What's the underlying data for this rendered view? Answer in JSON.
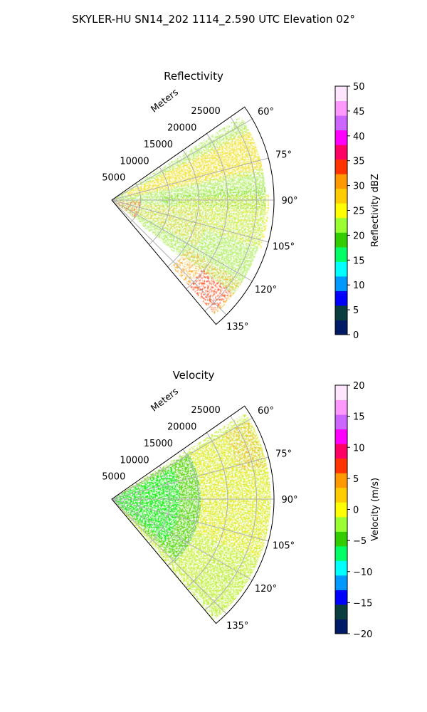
{
  "figure": {
    "suptitle": "SKYLER-HU  SN14_202  1114_2.590 UTC Elevation 02°"
  },
  "chart_data": [
    {
      "type": "heatmap",
      "projection": "polar-sector",
      "title": "Reflectivity",
      "radial_label": "Meters",
      "radial_ticks": [
        5000,
        10000,
        15000,
        20000,
        25000
      ],
      "r_range": [
        0,
        28000
      ],
      "theta_range_deg": [
        55,
        140
      ],
      "theta_ticks_deg": [
        60,
        75,
        90,
        105,
        120,
        135
      ],
      "theta_tick_labels": [
        "60°",
        "75°",
        "90°",
        "105°",
        "120°",
        "135°"
      ],
      "grid": true,
      "colorbar": {
        "label": "Reflectivity dBZ",
        "range": [
          0,
          50
        ],
        "ticks": [
          "0",
          "5",
          "10",
          "15",
          "20",
          "25",
          "30",
          "35",
          "40",
          "45",
          "50"
        ],
        "colors": [
          "#001a66",
          "#0a3d3d",
          "#0000ff",
          "#0099ff",
          "#00ffff",
          "#00ff66",
          "#33cc00",
          "#99ff33",
          "#ffff00",
          "#ffcc00",
          "#ff9900",
          "#ff3300",
          "#ff0066",
          "#ff00ff",
          "#cc66ff",
          "#ff99ff",
          "#ffe6ff"
        ]
      },
      "field_summary": "Dominant 20–30 dBZ (green/yellow) with embedded 35–40 dBZ (red) streaks near 110°–135°"
    },
    {
      "type": "heatmap",
      "projection": "polar-sector",
      "title": "Velocity",
      "radial_label": "Meters",
      "radial_ticks": [
        5000,
        10000,
        15000,
        20000,
        25000
      ],
      "r_range": [
        0,
        28000
      ],
      "theta_range_deg": [
        55,
        140
      ],
      "theta_ticks_deg": [
        60,
        75,
        90,
        105,
        120,
        135
      ],
      "theta_tick_labels": [
        "60°",
        "75°",
        "90°",
        "105°",
        "120°",
        "135°"
      ],
      "grid": true,
      "colorbar": {
        "label": "Velocity (m/s)",
        "range": [
          -20,
          20
        ],
        "ticks": [
          "−20",
          "−15",
          "−10",
          "−5",
          "0",
          "5",
          "10",
          "15",
          "20"
        ],
        "colors": [
          "#001a66",
          "#0a3d3d",
          "#0000ff",
          "#0099ff",
          "#00ffff",
          "#00ff66",
          "#33cc00",
          "#99ff33",
          "#ffff00",
          "#ffcc00",
          "#ff9900",
          "#ff3300",
          "#ff0066",
          "#ff00ff",
          "#cc66ff",
          "#ff99ff",
          "#ffe6ff"
        ]
      },
      "field_summary": "Near radar −8 to −5 m/s (green), transitioning to 0 to +5 m/s (yellow/orange) at long range, +10 m/s (red) near 60°–75°"
    }
  ]
}
